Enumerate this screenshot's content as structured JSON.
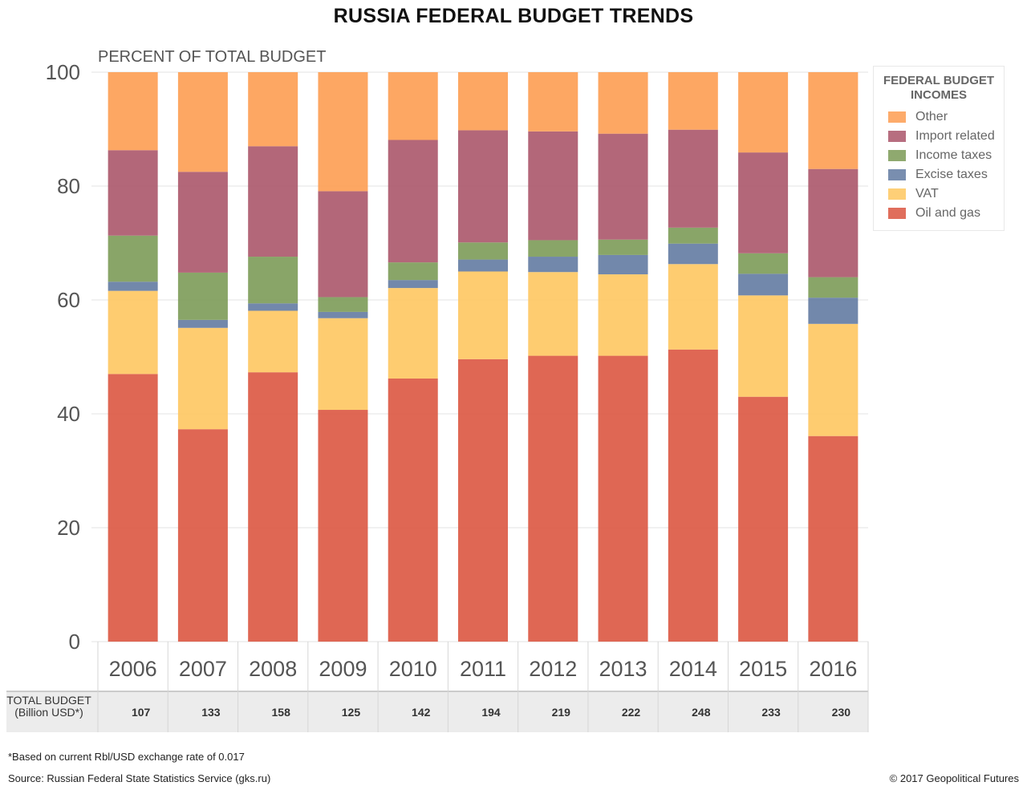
{
  "title": "RUSSIA FEDERAL BUDGET TRENDS",
  "subtitle": "PERCENT OF TOTAL BUDGET",
  "legend": {
    "title_lines": [
      "FEDERAL BUDGET",
      "INCOMES"
    ],
    "order": [
      "Other",
      "Import related",
      "Income taxes",
      "Excise taxes",
      "VAT",
      "Oil and gas"
    ]
  },
  "total_row": {
    "label_lines": [
      "TOTAL BUDGET",
      "(Billion USD*)"
    ]
  },
  "footnote": "*Based on current Rbl/USD exchange rate of 0.017",
  "source": "Source: Russian Federal State Statistics Service (gks.ru)",
  "copyright": "© 2017 Geopolitical Futures",
  "chart_data": {
    "type": "bar",
    "stacked": true,
    "categories": [
      "2006",
      "2007",
      "2008",
      "2009",
      "2010",
      "2011",
      "2012",
      "2013",
      "2014",
      "2015",
      "2016"
    ],
    "ylim": [
      0,
      100
    ],
    "yticks": [
      0,
      20,
      40,
      60,
      80,
      100
    ],
    "grid": true,
    "legend_position": "right",
    "series": [
      {
        "name": "Oil and gas",
        "color": "#dc5a45",
        "values": [
          47.0,
          37.3,
          47.3,
          40.7,
          46.2,
          49.6,
          50.2,
          50.2,
          51.3,
          43.0,
          36.1
        ]
      },
      {
        "name": "VAT",
        "color": "#fec864",
        "values": [
          14.6,
          17.8,
          10.8,
          16.1,
          15.9,
          15.4,
          14.7,
          14.3,
          15.0,
          17.8,
          19.7
        ]
      },
      {
        "name": "Excise taxes",
        "color": "#667ea4",
        "values": [
          1.6,
          1.4,
          1.3,
          1.1,
          1.4,
          2.1,
          2.7,
          3.4,
          3.6,
          3.8,
          4.6
        ]
      },
      {
        "name": "Income taxes",
        "color": "#7f9d5b",
        "values": [
          8.1,
          8.3,
          8.2,
          2.6,
          3.1,
          3.0,
          2.9,
          2.7,
          2.8,
          3.6,
          3.6
        ]
      },
      {
        "name": "Import related",
        "color": "#ad5a6e",
        "values": [
          15.0,
          17.7,
          19.4,
          18.6,
          21.5,
          19.7,
          19.1,
          18.6,
          17.2,
          17.7,
          19.0
        ]
      },
      {
        "name": "Other",
        "color": "#fd9f56",
        "values": [
          13.7,
          17.5,
          13.0,
          20.9,
          11.9,
          10.2,
          10.4,
          10.8,
          10.1,
          14.1,
          17.0
        ]
      }
    ],
    "total_budget_billion_usd": [
      107,
      133,
      158,
      125,
      142,
      194,
      219,
      222,
      248,
      233,
      230
    ]
  }
}
